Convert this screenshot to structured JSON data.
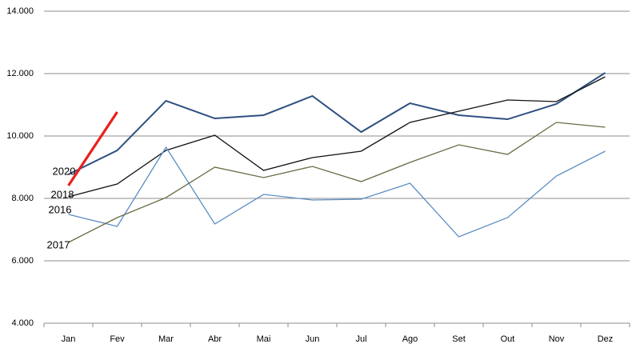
{
  "chart_data": {
    "type": "line",
    "categories": [
      "Jan",
      "Fev",
      "Mar",
      "Abr",
      "Mai",
      "Jun",
      "Jul",
      "Ago",
      "Set",
      "Out",
      "Nov",
      "Dez"
    ],
    "series": [
      {
        "color": "#2e5080",
        "values": [
          8769,
          9538,
          11128,
          10564,
          10667,
          11282,
          10128,
          11051,
          10667,
          10538,
          11026,
          12026
        ]
      },
      {
        "name": "2018",
        "color": "#111111",
        "values": [
          8051,
          8462,
          9538,
          10026,
          8897,
          9308,
          9513,
          10436,
          10795,
          11154,
          11103,
          11897
        ]
      },
      {
        "name": "2016",
        "color": "#5b8ec4",
        "values": [
          7487,
          7103,
          9641,
          7179,
          8128,
          7949,
          7974,
          8487,
          6769,
          7385,
          8718,
          9513
        ]
      },
      {
        "name": "2017",
        "color": "#6b6b45",
        "values": [
          6590,
          7385,
          8026,
          9000,
          8667,
          9026,
          8538,
          9154,
          9718,
          9410,
          10436,
          10282
        ]
      },
      {
        "name": "2020",
        "color": "#e8201c",
        "values": [
          8410,
          10769,
          null,
          null,
          null,
          null,
          null,
          null,
          null,
          null,
          null,
          null
        ]
      }
    ],
    "ylim": [
      4000,
      14000
    ],
    "yticks": [
      {
        "value": 4000,
        "label": "4.000"
      },
      {
        "value": 6000,
        "label": "6.000"
      },
      {
        "value": 8000,
        "label": "8.000"
      },
      {
        "value": 10000,
        "label": "10.000"
      },
      {
        "value": 12000,
        "label": "12.000"
      },
      {
        "value": 14000,
        "label": "14.000"
      }
    ],
    "grid": true
  }
}
